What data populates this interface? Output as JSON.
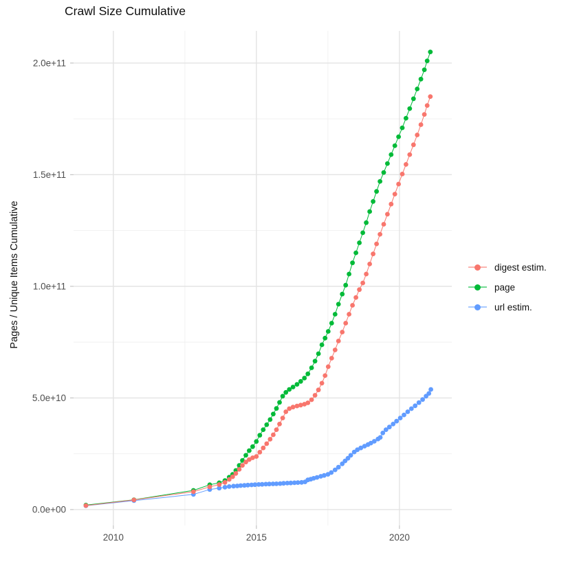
{
  "title": "Crawl Size Cumulative",
  "axes": {
    "y_label": "Pages / Unique Items Cumulative",
    "x_tick_labels": [
      "2010",
      "2015",
      "2020"
    ],
    "y_tick_labels": [
      "0.0e+00",
      "5.0e+10",
      "1.0e+11",
      "1.5e+11",
      "2.0e+11"
    ]
  },
  "legend": {
    "items": [
      {
        "label": "digest estim.",
        "color": "#F8766D"
      },
      {
        "label": "page",
        "color": "#00BA38"
      },
      {
        "label": "url estim.",
        "color": "#619CFF"
      }
    ]
  },
  "colors": {
    "background": "#ffffff",
    "grid_major": "#e3e3e3",
    "grid_minor": "#efefef",
    "tick_mark": "#c4c4c4",
    "tick_text": "#4d4d4d",
    "digest": "#F8766D",
    "page": "#00BA38",
    "url": "#619CFF"
  },
  "chart_data": {
    "type": "line",
    "title": "Crawl Size Cumulative",
    "xlabel": "",
    "ylabel": "Pages / Unique Items Cumulative",
    "xlim": [
      2008.61,
      2021.83
    ],
    "ylim": [
      -7100000000.0,
      214400000000.0
    ],
    "grid": true,
    "legend_position": "right",
    "x_ticks": [
      2010,
      2015,
      2020
    ],
    "x_minor_ticks": [
      2012.5,
      2017.5
    ],
    "y_ticks": [
      0,
      50000000000.0,
      100000000000.0,
      150000000000.0,
      200000000000.0
    ],
    "y_minor_ticks": [
      25000000000.0,
      75000000000.0,
      125000000000.0,
      175000000000.0
    ],
    "y_tick_labels": [
      "0.0e+00",
      "5.0e+10",
      "1.0e+11",
      "1.5e+11",
      "2.0e+11"
    ],
    "series": [
      {
        "name": "digest estim.",
        "color": "#F8766D",
        "points": [
          [
            2009.04,
            1800000000.0
          ],
          [
            2010.72,
            4300000000.0
          ],
          [
            2012.8,
            8000000000.0
          ],
          [
            2013.37,
            10200000000.0
          ],
          [
            2013.7,
            11200000000.0
          ],
          [
            2013.9,
            12200000000.0
          ],
          [
            2014.05,
            13500000000.0
          ],
          [
            2014.17,
            14700000000.0
          ],
          [
            2014.28,
            16200000000.0
          ],
          [
            2014.4,
            18000000000.0
          ],
          [
            2014.51,
            19800000000.0
          ],
          [
            2014.63,
            21300000000.0
          ],
          [
            2014.75,
            22400000000.0
          ],
          [
            2014.87,
            23200000000.0
          ],
          [
            2015.0,
            23800000000.0
          ],
          [
            2015.12,
            25700000000.0
          ],
          [
            2015.24,
            27600000000.0
          ],
          [
            2015.36,
            29500000000.0
          ],
          [
            2015.48,
            31500000000.0
          ],
          [
            2015.59,
            33500000000.0
          ],
          [
            2015.7,
            35800000000.0
          ],
          [
            2015.81,
            38300000000.0
          ],
          [
            2015.92,
            41000000000.0
          ],
          [
            2016.03,
            43800000000.0
          ],
          [
            2016.15,
            45200000000.0
          ],
          [
            2016.28,
            45900000000.0
          ],
          [
            2016.42,
            46400000000.0
          ],
          [
            2016.55,
            46800000000.0
          ],
          [
            2016.68,
            47200000000.0
          ],
          [
            2016.8,
            47800000000.0
          ],
          [
            2016.93,
            49200000000.0
          ],
          [
            2017.05,
            51200000000.0
          ],
          [
            2017.17,
            53600000000.0
          ],
          [
            2017.29,
            56600000000.0
          ],
          [
            2017.4,
            60000000000.0
          ],
          [
            2017.51,
            64000000000.0
          ],
          [
            2017.63,
            67800000000.0
          ],
          [
            2017.75,
            71500000000.0
          ],
          [
            2017.87,
            75500000000.0
          ],
          [
            2018.0,
            79500000000.0
          ],
          [
            2018.12,
            83500000000.0
          ],
          [
            2018.24,
            87500000000.0
          ],
          [
            2018.36,
            91500000000.0
          ],
          [
            2018.48,
            95000000000.0
          ],
          [
            2018.6,
            98500000000.0
          ],
          [
            2018.72,
            101500000000.0
          ],
          [
            2018.84,
            105500000000.0
          ],
          [
            2018.96,
            110000000000.0
          ],
          [
            2019.08,
            114500000000.0
          ],
          [
            2019.2,
            119000000000.0
          ],
          [
            2019.32,
            123300000000.0
          ],
          [
            2019.45,
            127800000000.0
          ],
          [
            2019.58,
            132300000000.0
          ],
          [
            2019.71,
            136800000000.0
          ],
          [
            2019.84,
            141300000000.0
          ],
          [
            2019.97,
            145800000000.0
          ],
          [
            2020.1,
            150300000000.0
          ],
          [
            2020.23,
            154600000000.0
          ],
          [
            2020.36,
            159000000000.0
          ],
          [
            2020.49,
            163400000000.0
          ],
          [
            2020.62,
            167800000000.0
          ],
          [
            2020.75,
            172400000000.0
          ],
          [
            2020.87,
            177000000000.0
          ],
          [
            2020.97,
            181000000000.0
          ],
          [
            2021.08,
            185000000000.0
          ]
        ]
      },
      {
        "name": "page",
        "color": "#00BA38",
        "points": [
          [
            2009.04,
            2000000000.0
          ],
          [
            2010.72,
            4400000000.0
          ],
          [
            2012.8,
            8600000000.0
          ],
          [
            2013.37,
            11100000000.0
          ],
          [
            2013.7,
            12000000000.0
          ],
          [
            2013.9,
            13000000000.0
          ],
          [
            2014.05,
            14500000000.0
          ],
          [
            2014.17,
            15800000000.0
          ],
          [
            2014.28,
            17500000000.0
          ],
          [
            2014.4,
            19800000000.0
          ],
          [
            2014.51,
            22000000000.0
          ],
          [
            2014.63,
            24300000000.0
          ],
          [
            2014.75,
            26400000000.0
          ],
          [
            2014.87,
            28200000000.0
          ],
          [
            2015.0,
            30500000000.0
          ],
          [
            2015.12,
            33300000000.0
          ],
          [
            2015.24,
            35800000000.0
          ],
          [
            2015.36,
            38000000000.0
          ],
          [
            2015.48,
            40300000000.0
          ],
          [
            2015.59,
            42800000000.0
          ],
          [
            2015.7,
            45300000000.0
          ],
          [
            2015.81,
            48000000000.0
          ],
          [
            2015.92,
            50800000000.0
          ],
          [
            2016.03,
            52500000000.0
          ],
          [
            2016.15,
            53800000000.0
          ],
          [
            2016.28,
            54900000000.0
          ],
          [
            2016.42,
            56100000000.0
          ],
          [
            2016.55,
            57400000000.0
          ],
          [
            2016.68,
            58900000000.0
          ],
          [
            2016.8,
            60800000000.0
          ],
          [
            2016.93,
            63500000000.0
          ],
          [
            2017.05,
            66500000000.0
          ],
          [
            2017.17,
            69800000000.0
          ],
          [
            2017.29,
            73800000000.0
          ],
          [
            2017.4,
            76800000000.0
          ],
          [
            2017.51,
            79800000000.0
          ],
          [
            2017.63,
            83500000000.0
          ],
          [
            2017.75,
            87500000000.0
          ],
          [
            2017.87,
            92000000000.0
          ],
          [
            2018.0,
            96500000000.0
          ],
          [
            2018.12,
            100500000000.0
          ],
          [
            2018.24,
            105500000000.0
          ],
          [
            2018.36,
            110500000000.0
          ],
          [
            2018.48,
            115000000000.0
          ],
          [
            2018.6,
            119500000000.0
          ],
          [
            2018.72,
            124000000000.0
          ],
          [
            2018.84,
            128500000000.0
          ],
          [
            2018.96,
            133500000000.0
          ],
          [
            2019.08,
            138000000000.0
          ],
          [
            2019.2,
            142500000000.0
          ],
          [
            2019.32,
            147000000000.0
          ],
          [
            2019.45,
            151000000000.0
          ],
          [
            2019.58,
            155000000000.0
          ],
          [
            2019.71,
            159000000000.0
          ],
          [
            2019.84,
            163000000000.0
          ],
          [
            2019.97,
            167000000000.0
          ],
          [
            2020.1,
            171000000000.0
          ],
          [
            2020.23,
            175300000000.0
          ],
          [
            2020.36,
            179600000000.0
          ],
          [
            2020.49,
            184000000000.0
          ],
          [
            2020.62,
            188400000000.0
          ],
          [
            2020.75,
            192800000000.0
          ],
          [
            2020.87,
            197000000000.0
          ],
          [
            2020.97,
            201000000000.0
          ],
          [
            2021.08,
            205000000000.0
          ]
        ]
      },
      {
        "name": "url estim.",
        "color": "#619CFF",
        "points": [
          [
            2009.04,
            1700000000.0
          ],
          [
            2010.72,
            4000000000.0
          ],
          [
            2012.8,
            6800000000.0
          ],
          [
            2013.37,
            9000000000.0
          ],
          [
            2013.7,
            9600000000.0
          ],
          [
            2013.9,
            10000000000.0
          ],
          [
            2014.05,
            10300000000.0
          ],
          [
            2014.2,
            10500000000.0
          ],
          [
            2014.33,
            10600000000.0
          ],
          [
            2014.45,
            10750000000.0
          ],
          [
            2014.58,
            10850000000.0
          ],
          [
            2014.7,
            10950000000.0
          ],
          [
            2014.83,
            11050000000.0
          ],
          [
            2014.95,
            11150000000.0
          ],
          [
            2015.08,
            11250000000.0
          ],
          [
            2015.2,
            11300000000.0
          ],
          [
            2015.33,
            11400000000.0
          ],
          [
            2015.45,
            11450000000.0
          ],
          [
            2015.58,
            11500000000.0
          ],
          [
            2015.7,
            11550000000.0
          ],
          [
            2015.83,
            11650000000.0
          ],
          [
            2015.95,
            11750000000.0
          ],
          [
            2016.08,
            11850000000.0
          ],
          [
            2016.2,
            11900000000.0
          ],
          [
            2016.33,
            12000000000.0
          ],
          [
            2016.45,
            12100000000.0
          ],
          [
            2016.58,
            12200000000.0
          ],
          [
            2016.7,
            12400000000.0
          ],
          [
            2016.8,
            13300000000.0
          ],
          [
            2016.9,
            13600000000.0
          ],
          [
            2017.0,
            14000000000.0
          ],
          [
            2017.12,
            14400000000.0
          ],
          [
            2017.25,
            14900000000.0
          ],
          [
            2017.37,
            15300000000.0
          ],
          [
            2017.5,
            15800000000.0
          ],
          [
            2017.62,
            16600000000.0
          ],
          [
            2017.75,
            17800000000.0
          ],
          [
            2017.87,
            19000000000.0
          ],
          [
            2018.0,
            20500000000.0
          ],
          [
            2018.1,
            21800000000.0
          ],
          [
            2018.2,
            23000000000.0
          ],
          [
            2018.3,
            24300000000.0
          ],
          [
            2018.42,
            25800000000.0
          ],
          [
            2018.53,
            26800000000.0
          ],
          [
            2018.65,
            27600000000.0
          ],
          [
            2018.78,
            28400000000.0
          ],
          [
            2018.9,
            29100000000.0
          ],
          [
            2019.0,
            29800000000.0
          ],
          [
            2019.12,
            30600000000.0
          ],
          [
            2019.25,
            31600000000.0
          ],
          [
            2019.33,
            32300000000.0
          ],
          [
            2019.42,
            34300000000.0
          ],
          [
            2019.53,
            35800000000.0
          ],
          [
            2019.65,
            37000000000.0
          ],
          [
            2019.78,
            38300000000.0
          ],
          [
            2019.9,
            39600000000.0
          ],
          [
            2020.03,
            41000000000.0
          ],
          [
            2020.16,
            42400000000.0
          ],
          [
            2020.29,
            43800000000.0
          ],
          [
            2020.42,
            45200000000.0
          ],
          [
            2020.55,
            46500000000.0
          ],
          [
            2020.68,
            47900000000.0
          ],
          [
            2020.81,
            49300000000.0
          ],
          [
            2020.93,
            50800000000.0
          ],
          [
            2021.03,
            52000000000.0
          ],
          [
            2021.1,
            53800000000.0
          ]
        ]
      }
    ]
  }
}
